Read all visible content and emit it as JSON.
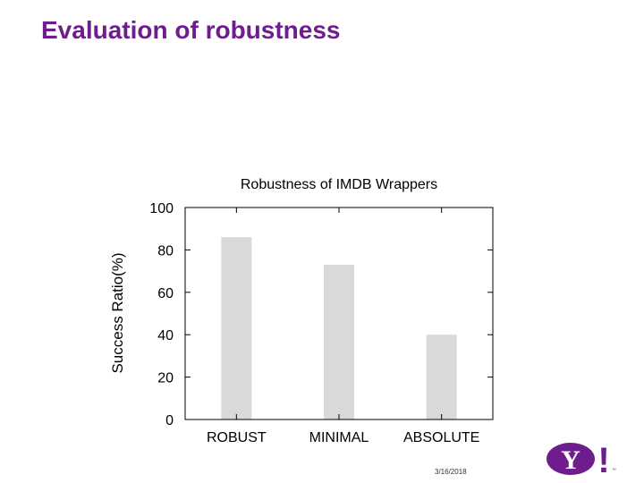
{
  "slide": {
    "title": "Evaluation of robustness",
    "date": "3/16/2018",
    "logo": {
      "text": "Y",
      "mark": "!",
      "tm": "™",
      "color": "#6e1e8c"
    }
  },
  "chart_data": {
    "type": "bar",
    "title": "Robustness of IMDB Wrappers",
    "xlabel": "",
    "ylabel": "Success Ratio(%)",
    "categories": [
      "ROBUST",
      "MINIMAL",
      "ABSOLUTE"
    ],
    "values": [
      86,
      73,
      40
    ],
    "ylim": [
      0,
      100
    ],
    "yticks": [
      0,
      20,
      40,
      60,
      80,
      100
    ],
    "bar_color": "#d9d9d9",
    "grid": false,
    "legend": "none"
  }
}
